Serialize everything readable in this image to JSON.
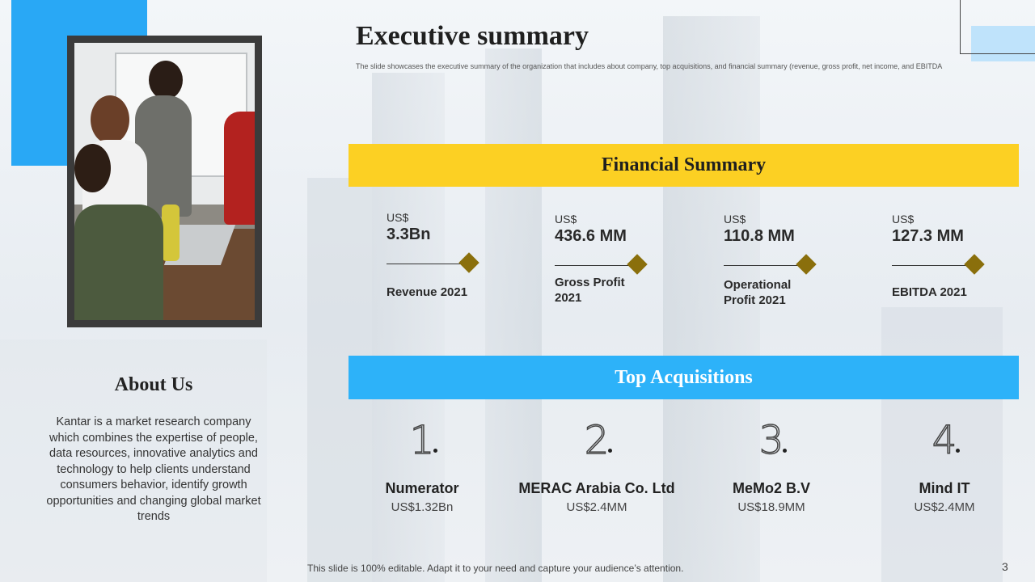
{
  "header": {
    "title": "Executive summary",
    "subtitle": "The slide showcases the executive  summary of the organization that includes about company, top acquisitions, and financial summary (revenue,  gross profit,  net income, and EBITDA"
  },
  "financial_summary": {
    "heading": "Financial Summary",
    "metrics": [
      {
        "currency": "US$",
        "value": "3.3Bn",
        "label": "Revenue 2021"
      },
      {
        "currency": "US$",
        "value": "436.6 MM",
        "label": "Gross Profit 2021"
      },
      {
        "currency": "US$",
        "value": "110.8 MM",
        "label": "Operational Profit 2021"
      },
      {
        "currency": "US$",
        "value": "127.3 MM",
        "label": "EBITDA 2021"
      }
    ]
  },
  "about": {
    "title": "About Us",
    "text": "Kantar is a market research company which combines the expertise of people, data resources, innovative analytics and technology  to help clients understand consumers behavior, identify growth opportunities and changing global market trends"
  },
  "acquisitions": {
    "heading": "Top Acquisitions",
    "items": [
      {
        "number": "1",
        "name": "Numerator",
        "amount": "US$1.32Bn"
      },
      {
        "number": "2",
        "name": "MERAC Arabia Co. Ltd",
        "amount": "US$2.4MM"
      },
      {
        "number": "3",
        "name": "MeMo2 B.V",
        "amount": "US$18.9MM"
      },
      {
        "number": "4",
        "name": "Mind IT",
        "amount": "US$2.4MM"
      }
    ]
  },
  "footer": {
    "text": "This slide is 100% editable. Adapt it to your need and capture your audience’s attention.",
    "page": "3"
  },
  "colors": {
    "accent_blue": "#2db2f9",
    "accent_yellow": "#fcd023",
    "diamond": "#8a6f0c"
  }
}
